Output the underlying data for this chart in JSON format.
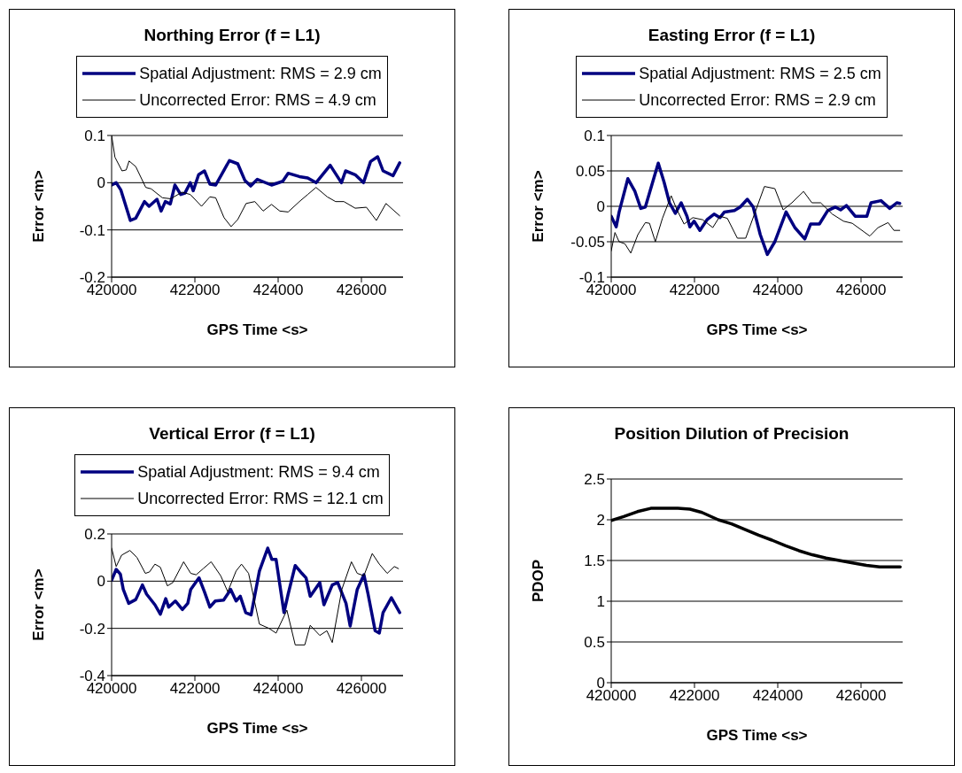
{
  "chart_data": [
    {
      "type": "line",
      "title": "Northing Error (f = L1)",
      "xlabel": "GPS Time <s>",
      "ylabel": "Error <m>",
      "xlim": [
        420000,
        427000
      ],
      "xticks": [
        420000,
        422000,
        424000,
        426000
      ],
      "ylim": [
        -0.2,
        0.1
      ],
      "yticks": [
        -0.2,
        -0.1,
        0,
        0.1
      ],
      "grid": "y",
      "legend": "top",
      "marker": "none",
      "line_style": "solid",
      "series": [
        {
          "name": "Spatial Adjustment: RMS = 2.9 cm",
          "color": "#000080",
          "x": [
            420000,
            420110,
            420220,
            420450,
            420580,
            420790,
            420900,
            421090,
            421190,
            421290,
            421410,
            421520,
            421660,
            421760,
            421890,
            421960,
            422090,
            422230,
            422360,
            422500,
            422830,
            423030,
            423200,
            423340,
            423500,
            423840,
            424110,
            424240,
            424510,
            424710,
            424910,
            425250,
            425520,
            425620,
            425850,
            426050,
            426220,
            426390,
            426520,
            426760,
            426920
          ],
          "values": [
            -0.005,
            0,
            -0.015,
            -0.08,
            -0.075,
            -0.04,
            -0.05,
            -0.035,
            -0.06,
            -0.04,
            -0.045,
            -0.005,
            -0.025,
            -0.022,
            0,
            -0.017,
            0.017,
            0.025,
            -0.003,
            -0.005,
            0.047,
            0.04,
            0.005,
            -0.007,
            0.007,
            -0.005,
            0.003,
            0.02,
            0.013,
            0.01,
            0,
            0.037,
            0,
            0.025,
            0.017,
            0,
            0.045,
            0.055,
            0.025,
            0.015,
            0.042
          ]
        },
        {
          "name": "Uncorrected Error: RMS = 4.9 cm",
          "color": "#000000",
          "x": [
            420000,
            420080,
            420250,
            420350,
            420420,
            420580,
            420820,
            420950,
            421220,
            421420,
            421690,
            421890,
            422160,
            422360,
            422500,
            422700,
            422870,
            423030,
            423230,
            423440,
            423640,
            423840,
            424040,
            424240,
            424510,
            424710,
            424910,
            425180,
            425380,
            425580,
            425850,
            426120,
            426360,
            426590,
            426920
          ],
          "values": [
            0.1,
            0.054,
            0.025,
            0.027,
            0.046,
            0.034,
            -0.01,
            -0.013,
            -0.032,
            -0.034,
            -0.02,
            -0.025,
            -0.05,
            -0.03,
            -0.032,
            -0.074,
            -0.093,
            -0.078,
            -0.044,
            -0.04,
            -0.06,
            -0.046,
            -0.06,
            -0.062,
            -0.04,
            -0.025,
            -0.01,
            -0.03,
            -0.04,
            -0.04,
            -0.054,
            -0.052,
            -0.08,
            -0.044,
            -0.07
          ]
        }
      ]
    },
    {
      "type": "line",
      "title": "Easting Error (f = L1)",
      "xlabel": "GPS Time <s>",
      "ylabel": "Error <m>",
      "xlim": [
        420000,
        427000
      ],
      "xticks": [
        420000,
        422000,
        424000,
        426000
      ],
      "ylim": [
        -0.1,
        0.1
      ],
      "yticks": [
        -0.1,
        -0.05,
        0,
        0.05,
        0.1
      ],
      "grid": "y",
      "legend": "top",
      "marker": "none",
      "line_style": "solid",
      "series": [
        {
          "name": "Spatial Adjustment: RMS = 2.5 cm",
          "color": "#000080",
          "x": [
            420000,
            420120,
            420190,
            420400,
            420570,
            420710,
            420820,
            421130,
            421270,
            421400,
            421540,
            421680,
            421820,
            421890,
            421990,
            422130,
            422300,
            422470,
            422610,
            422720,
            422960,
            423100,
            423270,
            423410,
            423580,
            423750,
            423930,
            424200,
            424410,
            424650,
            424790,
            425000,
            425200,
            425380,
            425510,
            425650,
            425860,
            426140,
            426240,
            426480,
            426690,
            426860,
            426930
          ],
          "values": [
            -0.014,
            -0.029,
            -0.008,
            0.039,
            0.021,
            -0.003,
            -0.001,
            0.061,
            0.034,
            0.005,
            -0.01,
            0.005,
            -0.014,
            -0.029,
            -0.021,
            -0.034,
            -0.019,
            -0.011,
            -0.016,
            -0.008,
            -0.006,
            -0.001,
            0.01,
            -0.001,
            -0.04,
            -0.068,
            -0.05,
            -0.008,
            -0.03,
            -0.046,
            -0.025,
            -0.025,
            -0.006,
            -0.001,
            -0.005,
            0.001,
            -0.014,
            -0.014,
            0.005,
            0.008,
            -0.003,
            0.005,
            0.004
          ]
        },
        {
          "name": "Uncorrected Error: RMS = 2.9 cm",
          "color": "#000000",
          "x": [
            420000,
            420090,
            420190,
            420330,
            420470,
            420640,
            420820,
            420920,
            421060,
            421230,
            421440,
            421580,
            421750,
            421960,
            422200,
            422440,
            422610,
            422790,
            423030,
            423230,
            423440,
            423680,
            423930,
            424130,
            424340,
            424620,
            424820,
            425030,
            425310,
            425580,
            425790,
            426210,
            426410,
            426650,
            426790,
            426930
          ],
          "values": [
            -0.063,
            -0.037,
            -0.05,
            -0.053,
            -0.066,
            -0.04,
            -0.023,
            -0.024,
            -0.05,
            -0.017,
            0.015,
            -0.005,
            -0.025,
            -0.016,
            -0.019,
            -0.03,
            -0.014,
            -0.017,
            -0.045,
            -0.045,
            -0.011,
            0.028,
            0.025,
            -0.005,
            0.005,
            0.021,
            0.005,
            0.005,
            -0.011,
            -0.021,
            -0.024,
            -0.042,
            -0.03,
            -0.023,
            -0.034,
            -0.034
          ]
        }
      ]
    },
    {
      "type": "line",
      "title": "Vertical Error (f = L1)",
      "xlabel": "GPS Time <s>",
      "ylabel": "Error <m>",
      "xlim": [
        420000,
        427000
      ],
      "xticks": [
        420000,
        422000,
        424000,
        426000
      ],
      "ylim": [
        -0.4,
        0.2
      ],
      "yticks": [
        -0.4,
        -0.2,
        0,
        0.2
      ],
      "grid": "y",
      "legend": "top",
      "marker": "none",
      "line_style": "solid",
      "series": [
        {
          "name": "Spatial Adjustment: RMS = 9.4 cm",
          "color": "#000080",
          "x": [
            420000,
            420110,
            420210,
            420280,
            420410,
            420580,
            420740,
            420840,
            421040,
            421170,
            421300,
            421370,
            421530,
            421700,
            421830,
            421900,
            422100,
            422230,
            422360,
            422490,
            422690,
            422860,
            422990,
            423090,
            423220,
            423350,
            423550,
            423750,
            423850,
            423950,
            424140,
            424240,
            424410,
            424570,
            424670,
            424770,
            425000,
            425100,
            425300,
            425430,
            425630,
            425730,
            425900,
            426060,
            426160,
            426330,
            426430,
            426520,
            426720,
            426920
          ],
          "values": [
            0.004,
            0.05,
            0.03,
            -0.035,
            -0.094,
            -0.078,
            -0.016,
            -0.055,
            -0.1,
            -0.14,
            -0.074,
            -0.11,
            -0.084,
            -0.12,
            -0.094,
            -0.035,
            0.014,
            -0.045,
            -0.11,
            -0.084,
            -0.08,
            -0.035,
            -0.084,
            -0.064,
            -0.133,
            -0.143,
            0.043,
            0.14,
            0.092,
            0.092,
            -0.133,
            -0.055,
            0.066,
            0.033,
            0.014,
            -0.064,
            -0.006,
            -0.1,
            -0.016,
            -0.006,
            -0.094,
            -0.19,
            -0.035,
            0.027,
            -0.055,
            -0.21,
            -0.22,
            -0.133,
            -0.07,
            -0.133
          ]
        },
        {
          "name": "Uncorrected Error: RMS = 12.1 cm",
          "color": "#000000",
          "x": [
            420000,
            420110,
            420240,
            420440,
            420610,
            420810,
            420910,
            421040,
            421170,
            421340,
            421470,
            421730,
            421900,
            422030,
            422200,
            422390,
            422620,
            422790,
            422990,
            423120,
            423290,
            423550,
            423780,
            423950,
            424210,
            424410,
            424640,
            424770,
            425000,
            425170,
            425300,
            425530,
            425760,
            425900,
            426060,
            426260,
            426430,
            426620,
            426790,
            426890
          ],
          "values": [
            0.14,
            0.062,
            0.11,
            0.13,
            0.1,
            0.033,
            0.039,
            0.072,
            0.059,
            -0.02,
            -0.006,
            0.082,
            0.033,
            0.027,
            0.053,
            0.082,
            0.023,
            -0.045,
            0.043,
            0.072,
            0.033,
            -0.182,
            -0.2,
            -0.22,
            -0.123,
            -0.27,
            -0.27,
            -0.187,
            -0.23,
            -0.21,
            -0.26,
            -0.035,
            0.082,
            0.033,
            0.023,
            0.117,
            0.072,
            0.033,
            0.062,
            0.053
          ]
        }
      ]
    },
    {
      "type": "line",
      "title": "Position Dilution of Precision",
      "xlabel": "GPS Time <s>",
      "ylabel": "PDOP",
      "xlim": [
        420000,
        427000
      ],
      "xticks": [
        420000,
        422000,
        424000,
        426000
      ],
      "ylim": [
        0,
        2.5
      ],
      "yticks": [
        0,
        0.5,
        1,
        1.5,
        2,
        2.5
      ],
      "grid": "y",
      "marker": "none",
      "line_style": "solid",
      "series": [
        {
          "color": "#000000",
          "x": [
            420000,
            420300,
            420630,
            420950,
            421280,
            421600,
            421890,
            422180,
            422570,
            422890,
            423220,
            423540,
            423860,
            424190,
            424510,
            424830,
            425160,
            425480,
            425800,
            426130,
            426450,
            426940
          ],
          "values": [
            1.99,
            2.04,
            2.1,
            2.14,
            2.14,
            2.14,
            2.13,
            2.09,
            2.0,
            1.95,
            1.88,
            1.81,
            1.75,
            1.68,
            1.62,
            1.57,
            1.53,
            1.5,
            1.47,
            1.44,
            1.42,
            1.42
          ]
        }
      ]
    }
  ]
}
